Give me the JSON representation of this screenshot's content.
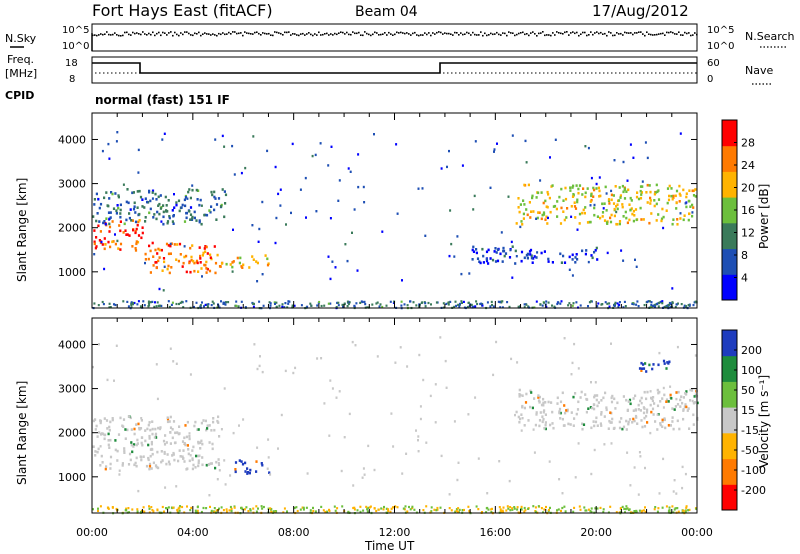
{
  "header": {
    "station": "Fort Hays East (fitACF)",
    "beam": "Beam 04",
    "date": "17/Aug/2012"
  },
  "noise_panel": {
    "left_label": "N.Sky",
    "left_ticks": [
      "10^5",
      "10^0"
    ],
    "right_label": "N.Search",
    "right_ticks": [
      "10^5",
      "10^0"
    ]
  },
  "freq_panel": {
    "left_label_top": "Freq.",
    "left_label_bottom": "[MHz]",
    "left_ticks": [
      "18",
      "8"
    ],
    "right_label": "Nave",
    "right_ticks": [
      "60",
      "0"
    ]
  },
  "cpid_panel": {
    "label": "CPID",
    "mode_text": "normal (fast) 151 IF"
  },
  "chart_data": [
    {
      "type": "heatmap",
      "name": "power",
      "ylabel": "Slant Range [km]",
      "yticks": [
        "4000",
        "3000",
        "2000",
        "1000"
      ],
      "ylim": [
        180,
        4600
      ],
      "xlim": [
        0,
        24
      ],
      "xticks": [
        "00:00",
        "04:00",
        "08:00",
        "12:00",
        "16:00",
        "20:00",
        "00:00"
      ],
      "colorbar": {
        "label": "Power [dB]",
        "ticks": [
          "28",
          "24",
          "20",
          "16",
          "12",
          "8",
          "4"
        ],
        "range": [
          0,
          32
        ],
        "colors": [
          "#0000ff",
          "#1e4fb4",
          "#3a7a5a",
          "#6cbf3c",
          "#ffb300",
          "#ff7a00",
          "#ff0000"
        ]
      },
      "regions": [
        {
          "t": [
            0,
            2
          ],
          "r": [
            1500,
            2200
          ],
          "level": 28
        },
        {
          "t": [
            2,
            5
          ],
          "r": [
            1000,
            1700
          ],
          "level": 26
        },
        {
          "t": [
            5,
            7
          ],
          "r": [
            1100,
            1400
          ],
          "level": 22
        },
        {
          "t": [
            0,
            5.3
          ],
          "r": [
            2100,
            2900
          ],
          "level": 10
        },
        {
          "t": [
            16.8,
            24
          ],
          "r": [
            2100,
            3000
          ],
          "level": 20
        },
        {
          "t": [
            15,
            20
          ],
          "r": [
            1200,
            1600
          ],
          "level": 6
        }
      ]
    },
    {
      "type": "heatmap",
      "name": "velocity",
      "ylabel": "Slant Range [km]",
      "yticks": [
        "4000",
        "3000",
        "2000",
        "1000"
      ],
      "ylim": [
        180,
        4600
      ],
      "xlim": [
        0,
        24
      ],
      "xticks": [
        "00:00",
        "04:00",
        "08:00",
        "12:00",
        "16:00",
        "20:00",
        "00:00"
      ],
      "xlabel": "Time UT",
      "colorbar": {
        "label": "Velocity [m s⁻¹]",
        "ticks": [
          "200",
          "100",
          "50",
          "15",
          "-15",
          "-50",
          "-100",
          "-200"
        ],
        "range": [
          -250,
          250
        ],
        "colors": [
          "#ff0000",
          "#ff7a00",
          "#ffb300",
          "#c8c8c8",
          "#6cbf3c",
          "#1e8c3c",
          "#1e3cbe"
        ]
      },
      "regions": [
        {
          "t": [
            0,
            5
          ],
          "r": [
            1200,
            2400
          ],
          "level": 0
        },
        {
          "t": [
            5.5,
            7
          ],
          "r": [
            1100,
            1400
          ],
          "level": 200
        },
        {
          "t": [
            16.8,
            24
          ],
          "r": [
            2100,
            3000
          ],
          "level": 0
        },
        {
          "t": [
            21.5,
            23
          ],
          "r": [
            3400,
            3700
          ],
          "level": 200
        }
      ]
    }
  ]
}
